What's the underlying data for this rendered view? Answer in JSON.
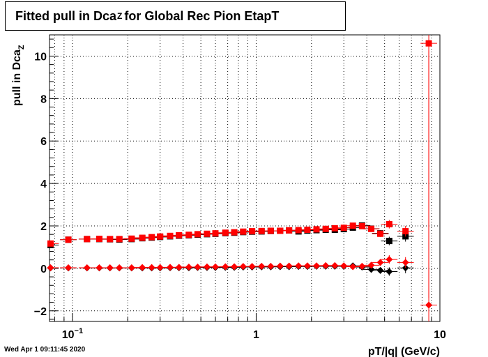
{
  "title": {
    "main": "Fitted pull in Dca",
    "sub": "Z",
    "rest": "for Global Rec Pion EtapT"
  },
  "timestamp": "Wed Apr  1 09:11:45 2020",
  "chart_data": {
    "type": "scatter",
    "title": "Fitted pull in Dca_Z for Global Rec Pion EtapT",
    "xlabel": "pT/|q| (GeV/c)",
    "ylabel_main": "pull in Dca",
    "ylabel_sub": "Z",
    "x_scale": "log",
    "xlim": [
      0.075,
      10
    ],
    "ylim": [
      -2.5,
      11
    ],
    "x_ticks": [
      {
        "value": 0.1,
        "label": "10",
        "exp": "−1"
      },
      {
        "value": 1,
        "label": "1",
        "exp": ""
      },
      {
        "value": 10,
        "label": "10",
        "exp": ""
      }
    ],
    "y_ticks": [
      -2,
      0,
      2,
      4,
      6,
      8,
      10
    ],
    "grid": true,
    "series": [
      {
        "marker": "square",
        "color": "#000000",
        "x": [
          0.076,
          0.095,
          0.12,
          0.14,
          0.16,
          0.18,
          0.21,
          0.24,
          0.27,
          0.3,
          0.34,
          0.38,
          0.43,
          0.48,
          0.54,
          0.6,
          0.68,
          0.76,
          0.85,
          0.95,
          1.07,
          1.2,
          1.35,
          1.51,
          1.7,
          1.9,
          2.13,
          2.39,
          2.68,
          3.0,
          3.36,
          3.77,
          4.23,
          4.74,
          5.3,
          6.5
        ],
        "y": [
          1.1,
          1.35,
          1.38,
          1.38,
          1.37,
          1.36,
          1.38,
          1.42,
          1.45,
          1.48,
          1.51,
          1.54,
          1.56,
          1.59,
          1.61,
          1.63,
          1.66,
          1.68,
          1.71,
          1.73,
          1.74,
          1.76,
          1.77,
          1.79,
          1.74,
          1.78,
          1.8,
          1.82,
          1.82,
          1.85,
          1.92,
          2.02,
          1.87,
          1.65,
          1.29,
          1.51
        ],
        "yerr": [
          0.05,
          0.03,
          0.03,
          0.03,
          0.03,
          0.03,
          0.02,
          0.02,
          0.02,
          0.02,
          0.02,
          0.02,
          0.02,
          0.02,
          0.02,
          0.02,
          0.02,
          0.02,
          0.02,
          0.02,
          0.02,
          0.02,
          0.02,
          0.02,
          0.03,
          0.03,
          0.03,
          0.04,
          0.05,
          0.06,
          0.08,
          0.1,
          0.12,
          0.15,
          0.2,
          0.25
        ]
      },
      {
        "marker": "square",
        "color": "#ff0000",
        "x": [
          0.076,
          0.095,
          0.12,
          0.14,
          0.16,
          0.18,
          0.21,
          0.24,
          0.27,
          0.3,
          0.34,
          0.38,
          0.43,
          0.48,
          0.54,
          0.6,
          0.68,
          0.76,
          0.85,
          0.95,
          1.07,
          1.2,
          1.35,
          1.51,
          1.7,
          1.9,
          2.13,
          2.39,
          2.68,
          3.0,
          3.36,
          3.77,
          4.23,
          4.74,
          5.3,
          6.5,
          8.7
        ],
        "y": [
          1.17,
          1.35,
          1.38,
          1.39,
          1.38,
          1.38,
          1.4,
          1.44,
          1.47,
          1.5,
          1.53,
          1.56,
          1.58,
          1.61,
          1.63,
          1.65,
          1.68,
          1.7,
          1.73,
          1.75,
          1.76,
          1.77,
          1.77,
          1.79,
          1.8,
          1.82,
          1.84,
          1.86,
          1.89,
          1.91,
          2.01,
          1.99,
          1.86,
          1.63,
          2.08,
          1.75,
          10.6
        ],
        "yerr": [
          0.05,
          0.03,
          0.03,
          0.03,
          0.03,
          0.03,
          0.02,
          0.02,
          0.02,
          0.02,
          0.02,
          0.02,
          0.02,
          0.02,
          0.02,
          0.02,
          0.02,
          0.02,
          0.02,
          0.02,
          0.02,
          0.02,
          0.02,
          0.02,
          0.03,
          0.03,
          0.03,
          0.04,
          0.05,
          0.06,
          0.08,
          0.1,
          0.12,
          0.15,
          0.2,
          0.25,
          12.0
        ]
      },
      {
        "marker": "diamond",
        "color": "#000000",
        "x": [
          0.076,
          0.095,
          0.12,
          0.14,
          0.16,
          0.18,
          0.21,
          0.24,
          0.27,
          0.3,
          0.34,
          0.38,
          0.43,
          0.48,
          0.54,
          0.6,
          0.68,
          0.76,
          0.85,
          0.95,
          1.07,
          1.2,
          1.35,
          1.51,
          1.7,
          1.9,
          2.13,
          2.39,
          2.68,
          3.0,
          3.36,
          3.77,
          4.23,
          4.74,
          5.3,
          6.5
        ],
        "y": [
          0.02,
          0.02,
          0.02,
          0.02,
          0.02,
          0.02,
          0.02,
          0.02,
          0.02,
          0.02,
          0.03,
          0.03,
          0.03,
          0.04,
          0.04,
          0.04,
          0.05,
          0.05,
          0.06,
          0.06,
          0.07,
          0.07,
          0.08,
          0.08,
          0.09,
          0.09,
          0.1,
          0.1,
          0.1,
          0.1,
          0.12,
          0.06,
          -0.05,
          -0.1,
          -0.15,
          0.02
        ],
        "yerr": [
          0.04,
          0.03,
          0.03,
          0.03,
          0.03,
          0.03,
          0.02,
          0.02,
          0.02,
          0.02,
          0.02,
          0.02,
          0.02,
          0.02,
          0.02,
          0.02,
          0.02,
          0.02,
          0.02,
          0.02,
          0.02,
          0.02,
          0.02,
          0.02,
          0.03,
          0.03,
          0.03,
          0.04,
          0.05,
          0.06,
          0.08,
          0.1,
          0.12,
          0.15,
          0.2,
          0.25
        ]
      },
      {
        "marker": "diamond",
        "color": "#ff0000",
        "x": [
          0.076,
          0.095,
          0.12,
          0.14,
          0.16,
          0.18,
          0.21,
          0.24,
          0.27,
          0.3,
          0.34,
          0.38,
          0.43,
          0.48,
          0.54,
          0.6,
          0.68,
          0.76,
          0.85,
          0.95,
          1.07,
          1.2,
          1.35,
          1.51,
          1.7,
          1.9,
          2.13,
          2.39,
          2.68,
          3.0,
          3.36,
          3.77,
          4.23,
          4.74,
          5.3,
          6.5,
          8.7
        ],
        "y": [
          0.03,
          0.03,
          0.03,
          0.03,
          0.03,
          0.03,
          0.03,
          0.04,
          0.04,
          0.04,
          0.05,
          0.05,
          0.06,
          0.06,
          0.07,
          0.07,
          0.08,
          0.08,
          0.09,
          0.09,
          0.1,
          0.1,
          0.11,
          0.11,
          0.12,
          0.12,
          0.12,
          0.13,
          0.13,
          0.12,
          0.08,
          0.1,
          0.15,
          0.28,
          0.42,
          0.28,
          -1.73
        ],
        "yerr": [
          0.04,
          0.03,
          0.03,
          0.03,
          0.03,
          0.03,
          0.02,
          0.02,
          0.02,
          0.02,
          0.02,
          0.02,
          0.02,
          0.02,
          0.02,
          0.02,
          0.02,
          0.02,
          0.02,
          0.02,
          0.02,
          0.02,
          0.02,
          0.02,
          0.03,
          0.03,
          0.03,
          0.04,
          0.05,
          0.06,
          0.08,
          0.1,
          0.12,
          0.15,
          0.2,
          0.25,
          12.0
        ]
      }
    ]
  }
}
